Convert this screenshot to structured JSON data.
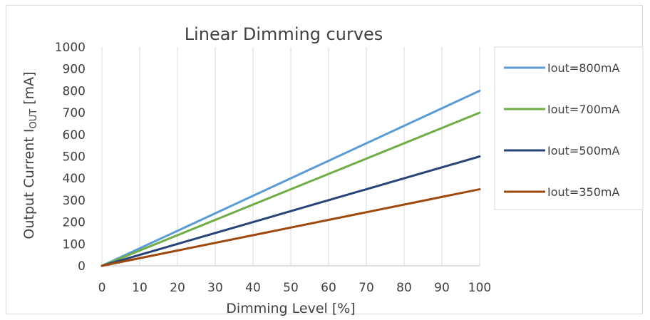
{
  "chart_data": {
    "type": "line",
    "title": "Linear Dimming curves",
    "xlabel": "Dimming Level [%]",
    "ylabel_main": "Output Current I",
    "ylabel_sub": "OUT",
    "ylabel_unit": " [mA]",
    "xlim": [
      0,
      100
    ],
    "ylim": [
      0,
      1000
    ],
    "xticks": [
      0,
      10,
      20,
      30,
      40,
      50,
      60,
      70,
      80,
      90,
      100
    ],
    "yticks": [
      0,
      100,
      200,
      300,
      400,
      500,
      600,
      700,
      800,
      900,
      1000
    ],
    "grid": "vertical",
    "legend_position": "right",
    "series": [
      {
        "name": "Iout=800mA",
        "color": "#5b9bd5",
        "x": [
          0,
          100
        ],
        "y": [
          0,
          800
        ]
      },
      {
        "name": "Iout=700mA",
        "color": "#70ad47",
        "x": [
          0,
          100
        ],
        "y": [
          0,
          700
        ]
      },
      {
        "name": "Iout=500mA",
        "color": "#264478",
        "x": [
          0,
          100
        ],
        "y": [
          0,
          500
        ]
      },
      {
        "name": "Iout=350mA",
        "color": "#9e480e",
        "x": [
          0,
          100
        ],
        "y": [
          0,
          350
        ]
      }
    ]
  }
}
